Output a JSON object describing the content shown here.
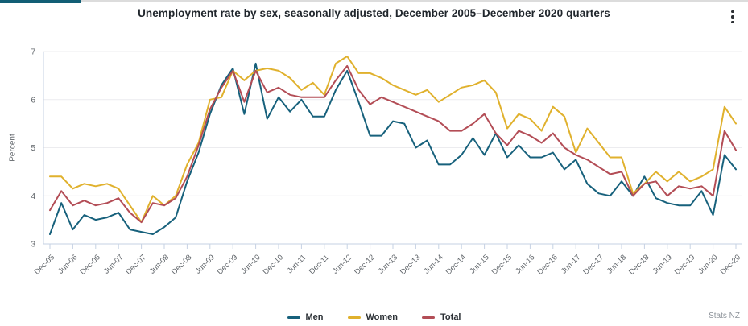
{
  "header": {
    "title": "Unemployment rate by sex, seasonally adjusted, December 2005–December 2020 quarters",
    "menu_icon": "kebab-menu"
  },
  "footer": {
    "source": "Stats NZ"
  },
  "colors": {
    "accent_bar": "#115e75",
    "title_text": "#20262c",
    "axis_text": "#5f6469",
    "grid_line": "#ececef",
    "axis_line": "#c6d2e3",
    "men": "#17617c",
    "women": "#e0b12d",
    "total": "#b34d56"
  },
  "chart_data": {
    "type": "line",
    "title": "Unemployment rate by sex, seasonally adjusted, December 2005–December 2020 quarters",
    "xlabel": "",
    "ylabel": "Percent",
    "ylim": [
      3,
      7
    ],
    "yticks": [
      3,
      4,
      5,
      6,
      7
    ],
    "grid": "horizontal",
    "legend_position": "bottom",
    "x_frequency": "quarterly",
    "x_tick_labels": [
      "Dec-05",
      "Jun-06",
      "Dec-06",
      "Jun-07",
      "Dec-07",
      "Jun-08",
      "Dec-08",
      "Jun-09",
      "Dec-09",
      "Jun-10",
      "Dec-10",
      "Jun-11",
      "Dec-11",
      "Jun-12",
      "Dec-12",
      "Jun-13",
      "Dec-13",
      "Jun-14",
      "Dec-14",
      "Jun-15",
      "Dec-15",
      "Jun-16",
      "Dec-16",
      "Jun-17",
      "Dec-17",
      "Jun-18",
      "Dec-18",
      "Jun-19",
      "Dec-19",
      "Jun-20",
      "Dec-20"
    ],
    "series": [
      {
        "name": "Men",
        "color": "#17617c",
        "values": [
          3.2,
          3.85,
          3.3,
          3.6,
          3.5,
          3.55,
          3.65,
          3.3,
          3.25,
          3.2,
          3.35,
          3.55,
          4.3,
          4.9,
          5.7,
          6.3,
          6.65,
          5.7,
          6.75,
          5.6,
          6.05,
          5.75,
          6.0,
          5.65,
          5.65,
          6.2,
          6.6,
          5.95,
          5.25,
          5.25,
          5.55,
          5.5,
          5.0,
          5.15,
          4.65,
          4.65,
          4.85,
          5.2,
          4.85,
          5.3,
          4.8,
          5.05,
          4.8,
          4.8,
          4.9,
          4.55,
          4.75,
          4.25,
          4.05,
          4.0,
          4.3,
          4.0,
          4.4,
          3.95,
          3.85,
          3.8,
          3.8,
          4.1,
          3.6,
          4.85,
          4.55
        ]
      },
      {
        "name": "Women",
        "color": "#e0b12d",
        "values": [
          4.4,
          4.4,
          4.15,
          4.25,
          4.2,
          4.25,
          4.15,
          3.8,
          3.45,
          4.0,
          3.8,
          4.0,
          4.65,
          5.1,
          6.0,
          6.05,
          6.6,
          6.4,
          6.6,
          6.65,
          6.6,
          6.45,
          6.2,
          6.35,
          6.1,
          6.75,
          6.9,
          6.55,
          6.55,
          6.45,
          6.3,
          6.2,
          6.1,
          6.2,
          5.95,
          6.1,
          6.25,
          6.3,
          6.4,
          6.15,
          5.4,
          5.7,
          5.6,
          5.35,
          5.85,
          5.65,
          4.9,
          5.4,
          5.1,
          4.8,
          4.8,
          4.05,
          4.25,
          4.5,
          4.3,
          4.5,
          4.3,
          4.4,
          4.55,
          5.85,
          5.5
        ]
      },
      {
        "name": "Total",
        "color": "#b34d56",
        "values": [
          3.7,
          4.1,
          3.8,
          3.9,
          3.8,
          3.85,
          3.95,
          3.65,
          3.45,
          3.85,
          3.8,
          3.95,
          4.4,
          5.05,
          5.8,
          6.25,
          6.6,
          5.95,
          6.6,
          6.15,
          6.25,
          6.1,
          6.05,
          6.05,
          6.05,
          6.4,
          6.7,
          6.2,
          5.9,
          6.05,
          5.95,
          5.85,
          5.75,
          5.65,
          5.55,
          5.35,
          5.35,
          5.5,
          5.7,
          5.3,
          5.05,
          5.35,
          5.25,
          5.1,
          5.3,
          5.0,
          4.85,
          4.75,
          4.6,
          4.45,
          4.5,
          4.0,
          4.25,
          4.3,
          4.0,
          4.2,
          4.15,
          4.2,
          4.0,
          5.35,
          4.95
        ]
      }
    ]
  }
}
